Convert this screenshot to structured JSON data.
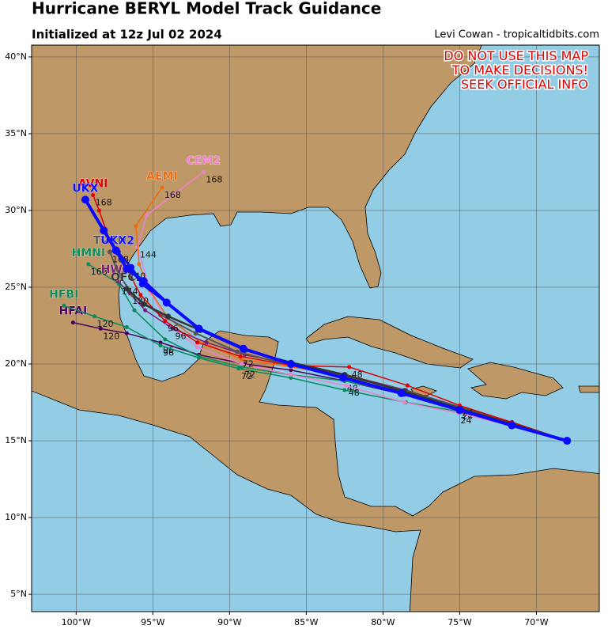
{
  "header": {
    "title": "Hurricane BERYL Model Track Guidance",
    "subtitle": "Initialized at 12z Jul 02 2024",
    "credit": "Levi Cowan - tropicaltidbits.com"
  },
  "warning": [
    "DO NOT USE THIS MAP",
    "TO MAKE DECISIONS!",
    "SEEK OFFICIAL INFO"
  ],
  "map": {
    "lonlim": [
      -102.9,
      -65.9
    ],
    "latlim": [
      3.87,
      40.77
    ],
    "grid": true,
    "lonticks": [
      {
        "value": -100,
        "label": "100°W"
      },
      {
        "value": -95,
        "label": "95°W"
      },
      {
        "value": -90,
        "label": "90°W"
      },
      {
        "value": -85,
        "label": "85°W"
      },
      {
        "value": -80,
        "label": "80°W"
      },
      {
        "value": -75,
        "label": "75°W"
      },
      {
        "value": -70,
        "label": "70°W"
      }
    ],
    "latticks": [
      {
        "value": 5,
        "label": "5°N"
      },
      {
        "value": 10,
        "label": "10°N"
      },
      {
        "value": 15,
        "label": "15°N"
      },
      {
        "value": 20,
        "label": "20°N"
      },
      {
        "value": 25,
        "label": "25°N"
      },
      {
        "value": 30,
        "label": "30°N"
      },
      {
        "value": 35,
        "label": "35°N"
      },
      {
        "value": 40,
        "label": "40°N"
      }
    ]
  },
  "tracks": [
    {
      "name": "HFAI",
      "color": "#4b0058",
      "width": 1.5,
      "lon": [
        -68,
        -71.6,
        -75,
        -78.6,
        -82.5,
        -86,
        -89,
        -92,
        -94.5,
        -96.7,
        -98.4,
        -100.2
      ],
      "lat": [
        15,
        16.1,
        17.0,
        18.0,
        18.9,
        19.6,
        20.0,
        20.6,
        21.4,
        22.0,
        22.3,
        22.7
      ],
      "hours": [
        null,
        null,
        null,
        null,
        null,
        null,
        null,
        null,
        96,
        null,
        120,
        null
      ]
    },
    {
      "name": "HFBI",
      "color": "#0b8a5a",
      "width": 1.5,
      "lon": [
        -68,
        -71.6,
        -75,
        -78.5,
        -82.5,
        -86,
        -89.4,
        -92,
        -94.5,
        -96.7,
        -98.8,
        -100.8
      ],
      "lat": [
        15,
        16.0,
        16.9,
        17.5,
        18.3,
        19.1,
        19.7,
        20.4,
        21.2,
        22.4,
        23.1,
        23.8
      ],
      "hours": [
        null,
        null,
        null,
        null,
        null,
        null,
        72,
        null,
        96,
        null,
        120,
        null
      ]
    },
    {
      "name": "HMNI",
      "color": "#0b8a5a",
      "width": 1.5,
      "lon": [
        -68,
        -71.6,
        -75,
        -78.7,
        -82.5,
        -86,
        -89.2,
        -92,
        -94.2,
        -96.2,
        -97.2,
        -99.2
      ],
      "lat": [
        15,
        16.1,
        17.1,
        18.1,
        18.9,
        19.3,
        19.8,
        20.5,
        21.6,
        23.5,
        25.2,
        26.5
      ],
      "hours": [
        null,
        null,
        24,
        null,
        48,
        null,
        72,
        null,
        null,
        null,
        144,
        168
      ]
    },
    {
      "name": "CEM2",
      "color": "#f080d0",
      "width": 1.5,
      "lon": [
        -68,
        -71.7,
        -75.1,
        -78.6,
        -82.4,
        -86,
        -89.2,
        -92.1,
        -94,
        -95.1,
        -96,
        -95.4,
        -91.7
      ],
      "lat": [
        15,
        16,
        16.8,
        17.5,
        18.6,
        19.3,
        20.0,
        21.1,
        22.6,
        24.6,
        27.6,
        29.7,
        32.5
      ],
      "hours": [
        null,
        null,
        24,
        null,
        48,
        null,
        null,
        null,
        null,
        null,
        144,
        null,
        168
      ]
    },
    {
      "name": "AEMI",
      "color": "#ee6a10",
      "width": 1.5,
      "lon": [
        -68,
        -71.6,
        -75,
        -78.5,
        -82.4,
        -86,
        -89.2,
        -92,
        -94,
        -95.2,
        -95.9,
        -96.1,
        -94.4
      ],
      "lat": [
        15,
        16.1,
        17.2,
        18.3,
        19.3,
        19.8,
        20.3,
        21.5,
        23.0,
        24.8,
        26.5,
        29.0,
        31.5
      ],
      "hours": [
        null,
        null,
        null,
        null,
        null,
        null,
        null,
        null,
        null,
        null,
        null,
        null,
        168
      ]
    },
    {
      "name": "HWFI",
      "color": "#7a1a7a",
      "width": 1.5,
      "lon": [
        -68,
        -71.6,
        -75,
        -78.5,
        -82.5,
        -86,
        -89,
        -91.5,
        -93.7,
        -95.5,
        -96.5,
        -97.3
      ],
      "lat": [
        15,
        16.2,
        17.2,
        18.3,
        19.3,
        20.0,
        20.6,
        21.4,
        22.3,
        23.5,
        24.6,
        25.4
      ],
      "hours": [
        null,
        null,
        null,
        null,
        null,
        null,
        null,
        null,
        96,
        null,
        120,
        null
      ]
    },
    {
      "name": "TVCN",
      "color": "#555555",
      "width": 2,
      "lon": [
        -68,
        -71.6,
        -75,
        -78.6,
        -82.5,
        -86,
        -89.5,
        -92.2,
        -94.5,
        -96.3,
        -97.2,
        -97.8
      ],
      "lat": [
        15,
        16.2,
        17.2,
        18.3,
        19.2,
        19.9,
        20.8,
        22.0,
        23.2,
        24.5,
        25.8,
        27.3
      ],
      "hours": [
        null,
        null,
        null,
        null,
        null,
        null,
        null,
        null,
        null,
        null,
        null,
        168
      ]
    },
    {
      "name": "AVNI",
      "color": "#e00000",
      "width": 1.5,
      "lon": [
        -68,
        -71.6,
        -75,
        -78.4,
        -82.2,
        -86,
        -89.3,
        -92.1,
        -94.2,
        -95.8,
        -96.7,
        -97.8,
        -98.5,
        -98.9
      ],
      "lat": [
        15,
        16.2,
        17.3,
        18.6,
        19.8,
        19.9,
        20.5,
        21.4,
        22.8,
        24.5,
        26.2,
        28.0,
        30.0,
        31.0
      ],
      "hours": [
        null,
        null,
        24,
        null,
        48,
        null,
        72,
        null,
        96,
        null,
        120,
        null,
        null,
        168
      ]
    },
    {
      "name": "OFCL",
      "color": "#333333",
      "width": 2.5,
      "lon": [
        -68,
        -71.6,
        -75,
        -78.6,
        -82.5,
        -86,
        -89,
        -91.9,
        -94,
        -95.6,
        -96.7
      ],
      "lat": [
        15,
        16.1,
        17.1,
        18.2,
        19.3,
        20.1,
        20.9,
        22.2,
        23.1,
        23.9,
        24.9
      ],
      "hours": [
        null,
        null,
        null,
        null,
        null,
        null,
        null,
        null,
        null,
        null,
        null
      ]
    },
    {
      "name": "UKX2",
      "color": "#1010ee",
      "width": 3,
      "lon": [
        -68,
        -71.6,
        -75,
        -78.8,
        -82.6,
        -86,
        -89.1,
        -92,
        -94.1,
        -95.7,
        -96.4,
        -97.3
      ],
      "lat": [
        15,
        16.0,
        17.0,
        18.1,
        19.1,
        20.0,
        21.0,
        22.3,
        24.0,
        25.2,
        26.3,
        27.3
      ],
      "hours": [
        null,
        null,
        null,
        null,
        null,
        null,
        null,
        null,
        null,
        null,
        null,
        null
      ]
    },
    {
      "name": "UKX",
      "color": "#0a0aff",
      "width": 4,
      "lon": [
        -68,
        -71.6,
        -75,
        -78.8,
        -82.6,
        -86,
        -89.1,
        -92,
        -94.1,
        -95.6,
        -96.7,
        -97.4,
        -98.2,
        -99.4
      ],
      "lat": [
        15,
        16.0,
        17.0,
        18.1,
        19.1,
        20.0,
        21.0,
        22.3,
        24.0,
        25.4,
        26.2,
        27.4,
        28.7,
        30.7
      ],
      "hours": [
        null,
        null,
        null,
        null,
        null,
        null,
        null,
        null,
        null,
        null,
        null,
        null,
        null,
        null
      ]
    }
  ]
}
